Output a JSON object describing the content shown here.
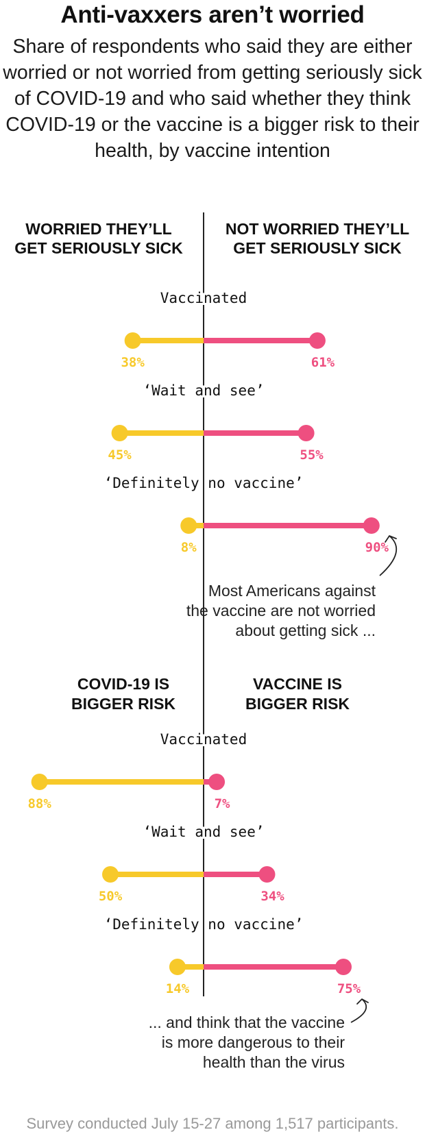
{
  "title": "Anti-vaxxers aren’t worried",
  "subtitle": "Share of respondents who said they are either worried or not worried from getting seriously sick of COVID-19 and who said whether they think COVID-19 or the vaccine is a bigger risk to their health, by vaccine intention",
  "footer": "Survey conducted July 15-27 among 1,517 participants.",
  "colors": {
    "left": "#f7c92a",
    "right": "#ee4f80",
    "axis": "#222222",
    "text": "#111111",
    "annotation": "#222222"
  },
  "chart_data": [
    {
      "type": "diverging-dot",
      "left_label": [
        "WORRIED THEY’LL",
        "GET SERIOUSLY SICK"
      ],
      "right_label": [
        "NOT WORRIED THEY’LL",
        "GET SERIOUSLY SICK"
      ],
      "categories": [
        "Vaccinated",
        "‘Wait and see’",
        "‘Definitely no vaccine’"
      ],
      "series": [
        {
          "name": "WORRIED THEY’LL GET SERIOUSLY SICK",
          "values": [
            38,
            45,
            8
          ]
        },
        {
          "name": "NOT WORRIED THEY’LL GET SERIOUSLY SICK",
          "values": [
            61,
            55,
            90
          ]
        }
      ],
      "unit": "%",
      "annotation": [
        "Most Americans against",
        "the vaccine are not worried",
        "about getting sick ..."
      ]
    },
    {
      "type": "diverging-dot",
      "left_label": [
        "COVID-19 IS",
        "BIGGER RISK"
      ],
      "right_label": [
        "VACCINE IS",
        "BIGGER RISK"
      ],
      "categories": [
        "Vaccinated",
        "‘Wait and see’",
        "‘Definitely no vaccine’"
      ],
      "series": [
        {
          "name": "COVID-19 IS BIGGER RISK",
          "values": [
            88,
            50,
            14
          ]
        },
        {
          "name": "VACCINE IS BIGGER RISK",
          "values": [
            7,
            34,
            75
          ]
        }
      ],
      "unit": "%",
      "annotation": [
        "... and think that the vaccine",
        "is more dangerous to their",
        "health than the virus"
      ]
    }
  ]
}
